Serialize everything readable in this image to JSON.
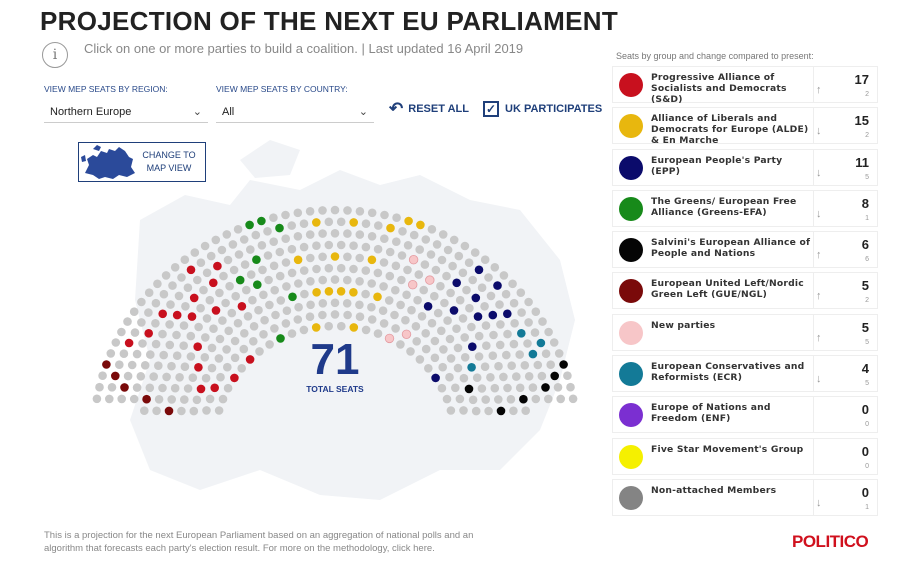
{
  "header": {
    "title": "PROJECTION OF THE NEXT EU PARLIAMENT",
    "subtitle": "Click on one or more parties to build a coalition. | Last updated 16 April 2019"
  },
  "filters": {
    "region_label": "VIEW MEP SEATS BY REGION:",
    "region_value": "Northern Europe",
    "country_label": "VIEW MEP SEATS BY COUNTRY:",
    "country_value": "All",
    "reset_label": "RESET ALL",
    "uk_label": "UK PARTICIPATES",
    "uk_checked": true
  },
  "map_button": {
    "label_line1": "CHANGE TO",
    "label_line2": "MAP VIEW"
  },
  "total": {
    "value": "71",
    "label": "TOTAL SEATS"
  },
  "legend": {
    "header": "Seats by group and change compared to present:",
    "groups": [
      {
        "name": "Progressive Alliance of Socialists and Democrats (S&D)",
        "color": "#c8101e",
        "seats": "17",
        "change": "2",
        "direction": "up"
      },
      {
        "name": "Alliance of Liberals and Democrats for Europe (ALDE) & En Marche",
        "color": "#e8b70e",
        "seats": "15",
        "change": "2",
        "direction": "down"
      },
      {
        "name": "European People's Party (EPP)",
        "color": "#0b0b6b",
        "seats": "11",
        "change": "5",
        "direction": "down"
      },
      {
        "name": "The Greens/ European Free Alliance (Greens-EFA)",
        "color": "#178a1a",
        "seats": "8",
        "change": "1",
        "direction": "down"
      },
      {
        "name": "Salvini's European Alliance of People and Nations",
        "color": "#050505",
        "seats": "6",
        "change": "6",
        "direction": "up"
      },
      {
        "name": "European United Left/Nordic Green Left (GUE/NGL)",
        "color": "#7a0a0a",
        "seats": "5",
        "change": "2",
        "direction": "up"
      },
      {
        "name": "New parties",
        "color": "#f7c6c8",
        "seats": "5",
        "change": "5",
        "direction": "up"
      },
      {
        "name": "European Conservatives and Reformists (ECR)",
        "color": "#137a97",
        "seats": "4",
        "change": "5",
        "direction": "down"
      },
      {
        "name": "Europe of Nations and Freedom (ENF)",
        "color": "#7b2fd1",
        "seats": "0",
        "change": "0",
        "direction": "none"
      },
      {
        "name": "Five Star Movement's Group",
        "color": "#f5f000",
        "seats": "0",
        "change": "0",
        "direction": "none"
      },
      {
        "name": "Non-attached Members",
        "color": "#848484",
        "seats": "0",
        "change": "1",
        "direction": "down"
      }
    ]
  },
  "footer": {
    "text": "This is a projection for the next European Parliament based on an aggregation of national polls and an algorithm that forecasts each party's election result. For more on the methodology, click here.",
    "brand": "POLITICO"
  },
  "hemicycle": {
    "empty_color": "#c8c8c8"
  }
}
